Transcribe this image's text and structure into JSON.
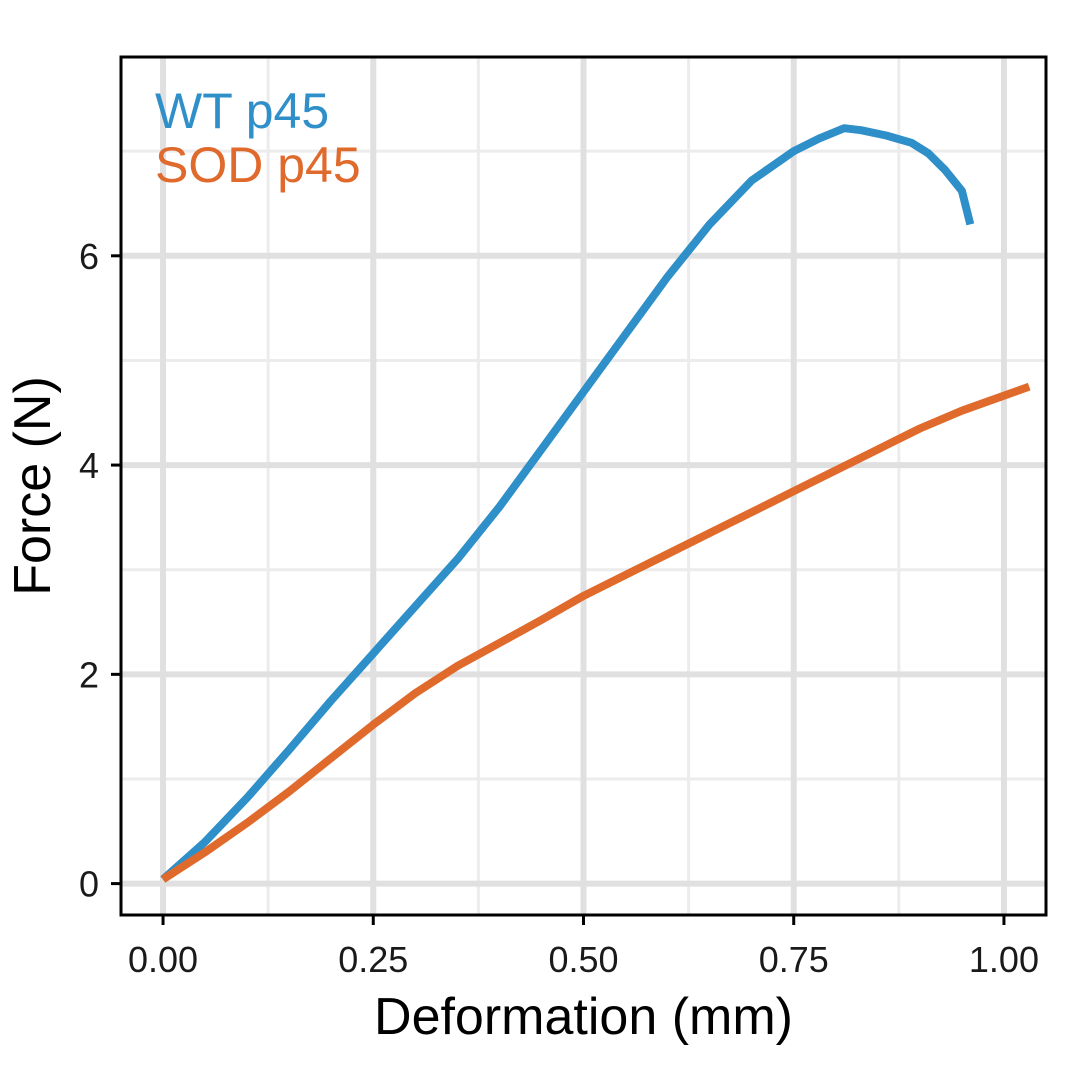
{
  "chart_data": {
    "type": "line",
    "title": "",
    "xlabel": "Deformation (mm)",
    "ylabel": "Force (N)",
    "xlim": [
      -0.05,
      1.05
    ],
    "ylim": [
      -0.3,
      7.9
    ],
    "x_ticks": [
      0,
      0.25,
      0.5,
      0.75,
      1.0
    ],
    "x_tick_labels": [
      "0.00",
      "0.25",
      "0.50",
      "0.75",
      "1.00"
    ],
    "y_ticks": [
      0,
      2,
      4,
      6
    ],
    "y_tick_labels": [
      "0",
      "2",
      "4",
      "6"
    ],
    "x_minor_ticks": [
      0.125,
      0.375,
      0.625,
      0.875
    ],
    "y_minor_ticks": [
      1,
      3,
      5,
      7
    ],
    "grid": true,
    "legend_position": "top-left",
    "series": [
      {
        "name": "WT p45",
        "color": "#2e8fc9",
        "x": [
          0,
          0.05,
          0.1,
          0.15,
          0.2,
          0.25,
          0.3,
          0.35,
          0.4,
          0.45,
          0.5,
          0.55,
          0.6,
          0.65,
          0.7,
          0.75,
          0.78,
          0.81,
          0.83,
          0.86,
          0.89,
          0.91,
          0.93,
          0.95,
          0.96
        ],
        "y": [
          0.04,
          0.4,
          0.82,
          1.28,
          1.75,
          2.2,
          2.65,
          3.1,
          3.6,
          4.15,
          4.7,
          5.25,
          5.8,
          6.3,
          6.72,
          7.0,
          7.12,
          7.22,
          7.2,
          7.15,
          7.08,
          6.98,
          6.82,
          6.62,
          6.3
        ]
      },
      {
        "name": "SOD p45",
        "color": "#e06a2c",
        "x": [
          0,
          0.05,
          0.1,
          0.15,
          0.2,
          0.25,
          0.3,
          0.35,
          0.4,
          0.45,
          0.5,
          0.55,
          0.6,
          0.65,
          0.7,
          0.75,
          0.8,
          0.85,
          0.9,
          0.95,
          1.03
        ],
        "y": [
          0.04,
          0.3,
          0.58,
          0.88,
          1.2,
          1.52,
          1.82,
          2.08,
          2.3,
          2.52,
          2.75,
          2.95,
          3.15,
          3.35,
          3.55,
          3.75,
          3.95,
          4.15,
          4.35,
          4.52,
          4.75
        ]
      }
    ]
  }
}
